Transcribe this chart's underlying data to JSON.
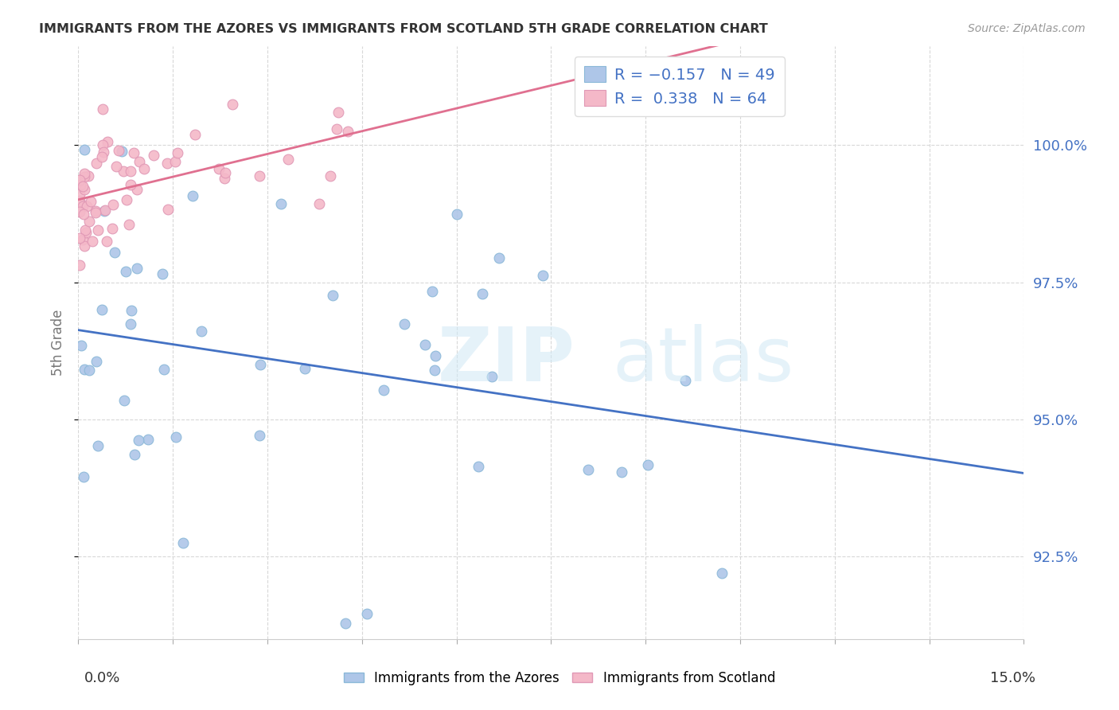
{
  "title": "IMMIGRANTS FROM THE AZORES VS IMMIGRANTS FROM SCOTLAND 5TH GRADE CORRELATION CHART",
  "source": "Source: ZipAtlas.com",
  "ylabel": "5th Grade",
  "xlim": [
    0.0,
    15.0
  ],
  "ylim": [
    91.0,
    101.8
  ],
  "ytick_vals": [
    92.5,
    95.0,
    97.5,
    100.0
  ],
  "ytick_labels": [
    "92.5%",
    "95.0%",
    "97.5%",
    "100.0%"
  ],
  "blue_label": "Immigrants from the Azores",
  "pink_label": "Immigrants from Scotland",
  "legend1_label": "R = −0.157   N = 49",
  "legend2_label": "R =  0.338   N = 64",
  "blue_scatter_color": "#aec6e8",
  "blue_edge_color": "#8ab8d8",
  "blue_line_color": "#4472c4",
  "pink_scatter_color": "#f4b8c8",
  "pink_edge_color": "#e098b5",
  "pink_line_color": "#e07090",
  "watermark_color": "#d0e8f5",
  "grid_color": "#d8d8d8",
  "title_color": "#333333",
  "source_color": "#999999",
  "right_tick_color": "#4472c4",
  "legend_text_color": "#4472c4",
  "background_color": "#ffffff"
}
